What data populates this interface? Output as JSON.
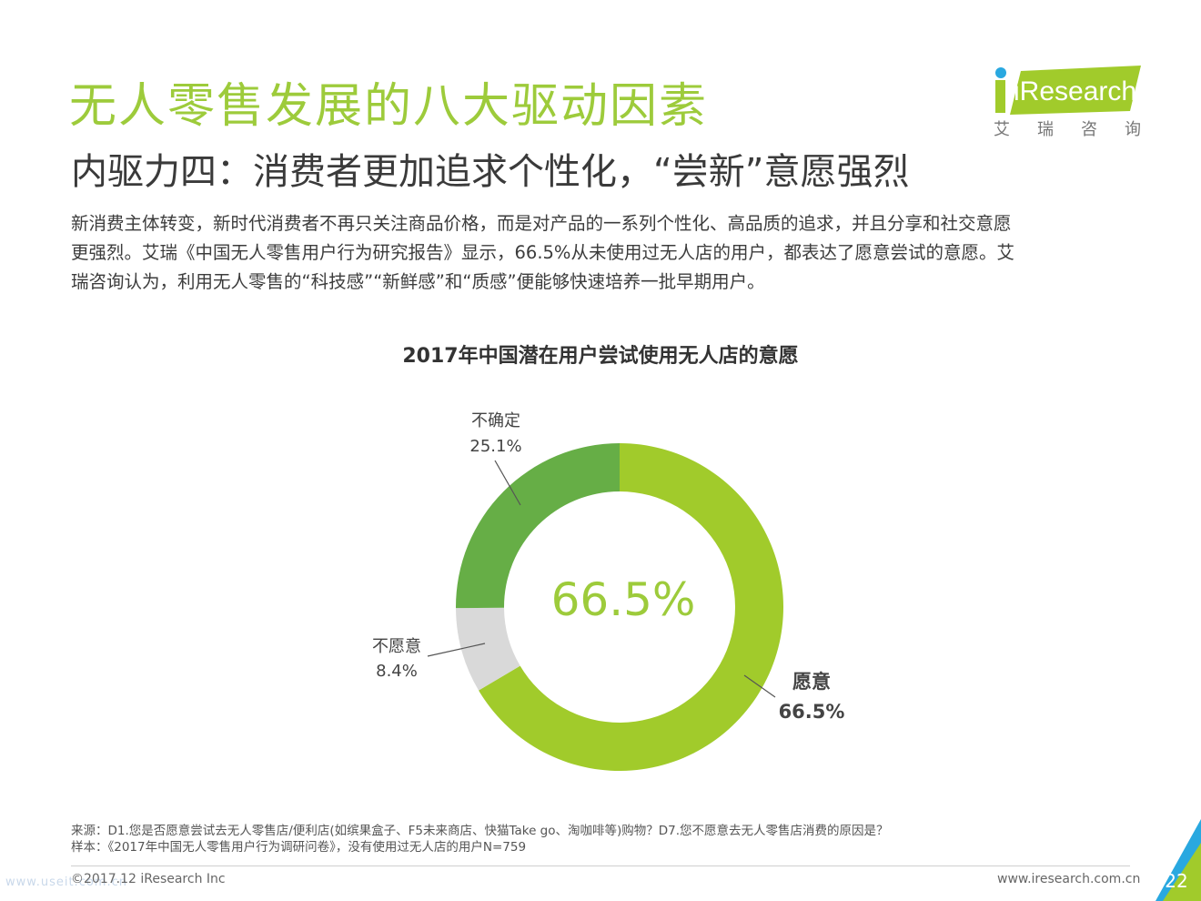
{
  "header": {
    "title": "无人零售发展的八大驱动因素",
    "subtitle": "内驱力四：消费者更加追求个性化，“尝新”意愿强烈"
  },
  "logo": {
    "brand": "iResearch",
    "cn_text": "艾瑞咨询"
  },
  "body": {
    "lines": [
      "新消费主体转变，新时代消费者不再只关注商品价格，而是对产品的一系列个性化、高品质的追求，并且分享和社交意愿",
      "更强烈。艾瑞《中国无人零售用户行为研究报告》显示，66.5%从未使用过无人店的用户，都表达了愿意尝试的意愿。艾",
      "瑞咨询认为，利用无人零售的“科技感”“新鲜感”和“质感”便能够快速培养一批早期用户。"
    ]
  },
  "chart_data": {
    "type": "pie",
    "title": "2017年中国潜在用户尝试使用无人店的意愿",
    "center_label": "66.5%",
    "slices": [
      {
        "label": "愿意",
        "value": 66.5,
        "value_label": "66.5%",
        "color": "#a1cb2b"
      },
      {
        "label": "不愿意",
        "value": 8.4,
        "value_label": "8.4%",
        "color": "#d9d9d9"
      },
      {
        "label": "不确定",
        "value": 25.1,
        "value_label": "25.1%",
        "color": "#66ae46"
      }
    ]
  },
  "footer": {
    "source": "来源：D1.您是否愿意尝试去无人零售店/便利店(如缤果盒子、F5未来商店、快猫Take go、淘咖啡等)购物？D7.您不愿意去无人零售店消费的原因是？",
    "sample": "样本：《2017年中国无人零售用户行为调研问卷》，没有使用过无人店的用户N=759",
    "copyright": "©2017.12 iResearch Inc",
    "website": "www.iresearch.com.cn",
    "page_number": "22",
    "watermark": "www.useit.com.cn"
  },
  "colors": {
    "accent_green": "#9dcb3b",
    "corner_blue": "#29a8e0"
  }
}
